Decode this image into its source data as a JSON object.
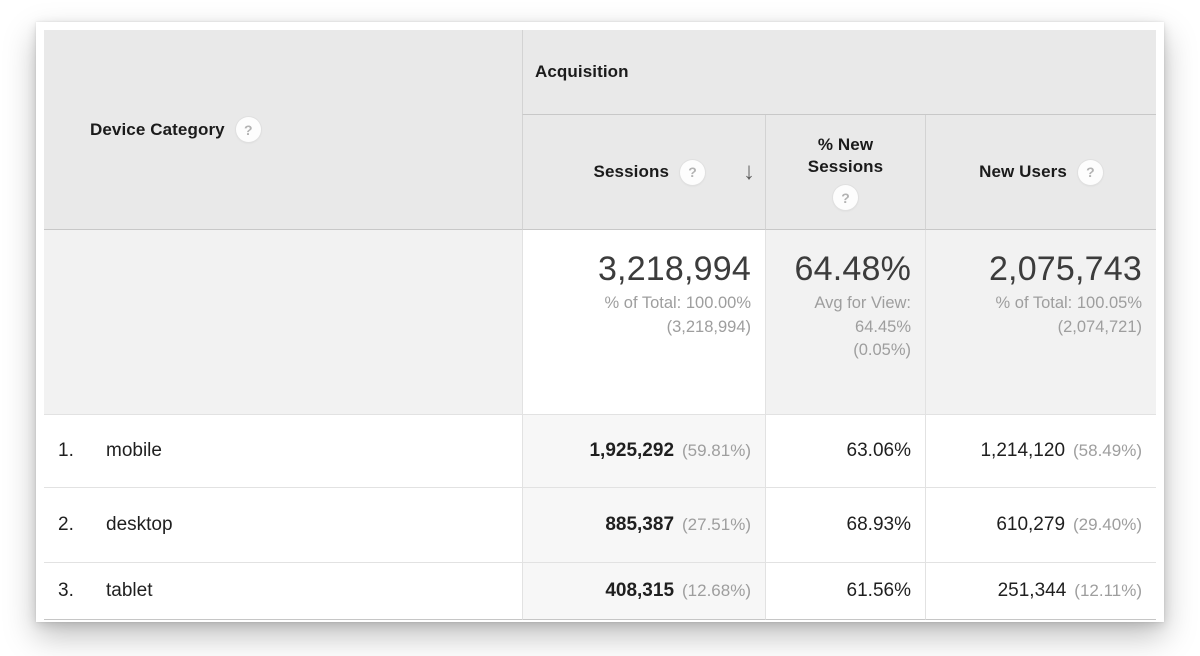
{
  "icons": {
    "help": "?",
    "sort_desc": "↓"
  },
  "colors": {
    "header_bg": "#e9e9e9",
    "summary_row_bg": "#f2f2f2",
    "sorted_column_bg": "#f7f7f7",
    "text_primary": "#1f1f1f",
    "text_secondary": "#9e9e9e",
    "border": "#c8c8c8"
  },
  "table": {
    "dimension_header": "Device Category",
    "group_header": "Acquisition",
    "columns": {
      "sessions": "Sessions",
      "new_sessions": "% New Sessions",
      "new_users": "New Users"
    },
    "summary": {
      "sessions_value": "3,218,994",
      "sessions_line1": "% of Total: 100.00%",
      "sessions_line2": "(3,218,994)",
      "new_sessions_value": "64.48%",
      "new_sessions_line1": "Avg for View:",
      "new_sessions_line2": "64.45%",
      "new_sessions_line3": "(0.05%)",
      "new_users_value": "2,075,743",
      "new_users_line1": "% of Total: 100.05%",
      "new_users_line2": "(2,074,721)"
    },
    "rows": [
      {
        "index": "1.",
        "category": "mobile",
        "sessions": "1,925,292",
        "sessions_pct": "(59.81%)",
        "new_sessions": "63.06%",
        "new_users": "1,214,120",
        "new_users_pct": "(58.49%)"
      },
      {
        "index": "2.",
        "category": "desktop",
        "sessions": "885,387",
        "sessions_pct": "(27.51%)",
        "new_sessions": "68.93%",
        "new_users": "610,279",
        "new_users_pct": "(29.40%)"
      },
      {
        "index": "3.",
        "category": "tablet",
        "sessions": "408,315",
        "sessions_pct": "(12.68%)",
        "new_sessions": "61.56%",
        "new_users": "251,344",
        "new_users_pct": "(12.11%)"
      }
    ]
  }
}
